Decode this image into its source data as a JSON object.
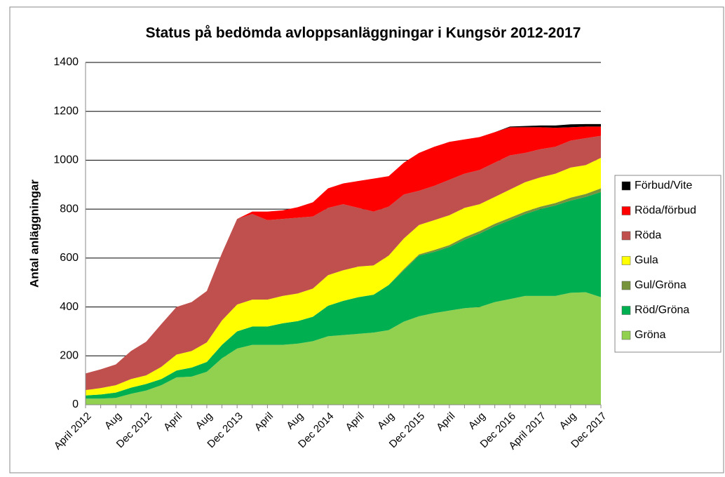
{
  "chart_data": {
    "type": "stacked_area",
    "title": "Status på bedömda avloppsanläggningar i Kungsör 2012-2017",
    "y_label": "Antal anläggningar",
    "categories": [
      "April 2012",
      null,
      "Aug",
      null,
      "Dec 2012",
      null,
      "April",
      null,
      "Aug",
      null,
      "Dec 2013",
      null,
      "April",
      null,
      "Aug",
      null,
      "Dec 2014",
      null,
      "April",
      null,
      "Aug",
      null,
      "Dec 2015",
      null,
      "April",
      null,
      "Aug",
      null,
      "Dec 2016",
      null,
      "April 2017",
      null,
      "Aug",
      null,
      "Dec 2017"
    ],
    "ylim": [
      0,
      1400
    ],
    "yticks": [
      0,
      200,
      400,
      600,
      800,
      1000,
      1200,
      1400
    ],
    "grid": true,
    "legend": "right",
    "series": [
      {
        "name": "Gröna",
        "color": "#92d050",
        "values": [
          25,
          25,
          28,
          45,
          58,
          80,
          112,
          115,
          135,
          190,
          230,
          245,
          245,
          245,
          250,
          260,
          280,
          285,
          290,
          295,
          305,
          340,
          362,
          375,
          385,
          395,
          400,
          420,
          432,
          445,
          445,
          445,
          458,
          460,
          440
        ]
      },
      {
        "name": "Röd/Gröna",
        "color": "#00b050",
        "values": [
          13,
          17,
          22,
          25,
          27,
          25,
          28,
          37,
          40,
          55,
          70,
          75,
          75,
          88,
          92,
          100,
          125,
          140,
          150,
          155,
          185,
          210,
          248,
          250,
          260,
          280,
          300,
          310,
          323,
          335,
          355,
          370,
          377,
          390,
          430
        ]
      },
      {
        "name": "Gul/Gröna",
        "color": "#77933c",
        "values": [
          0,
          0,
          0,
          0,
          0,
          0,
          0,
          0,
          0,
          0,
          0,
          0,
          0,
          0,
          0,
          0,
          0,
          0,
          0,
          0,
          0,
          5,
          5,
          8,
          8,
          10,
          10,
          10,
          10,
          10,
          10,
          10,
          12,
          12,
          15
        ]
      },
      {
        "name": "Gula",
        "color": "#ffff00",
        "values": [
          22,
          26,
          30,
          35,
          35,
          50,
          65,
          68,
          80,
          100,
          110,
          110,
          110,
          112,
          113,
          115,
          125,
          125,
          125,
          120,
          120,
          125,
          120,
          122,
          122,
          120,
          110,
          110,
          115,
          120,
          120,
          120,
          123,
          118,
          125
        ]
      },
      {
        "name": "Röda",
        "color": "#c0504d",
        "values": [
          68,
          77,
          85,
          115,
          138,
          175,
          195,
          200,
          210,
          275,
          350,
          350,
          325,
          315,
          310,
          295,
          275,
          270,
          240,
          220,
          200,
          180,
          140,
          140,
          145,
          140,
          140,
          140,
          140,
          120,
          115,
          110,
          110,
          110,
          90
        ]
      },
      {
        "name": "Röda/förbud",
        "color": "#ff0000",
        "values": [
          0,
          0,
          0,
          0,
          0,
          0,
          0,
          0,
          0,
          0,
          0,
          10,
          35,
          35,
          43,
          58,
          80,
          85,
          110,
          135,
          125,
          130,
          155,
          160,
          155,
          140,
          135,
          125,
          115,
          105,
          90,
          78,
          55,
          48,
          38
        ]
      },
      {
        "name": "Förbud/Vite",
        "color": "#000000",
        "values": [
          0,
          0,
          0,
          0,
          0,
          0,
          0,
          0,
          0,
          0,
          0,
          0,
          0,
          0,
          0,
          0,
          0,
          0,
          0,
          0,
          0,
          0,
          0,
          0,
          0,
          0,
          0,
          0,
          3,
          5,
          7,
          9,
          12,
          10,
          10
        ]
      }
    ]
  }
}
